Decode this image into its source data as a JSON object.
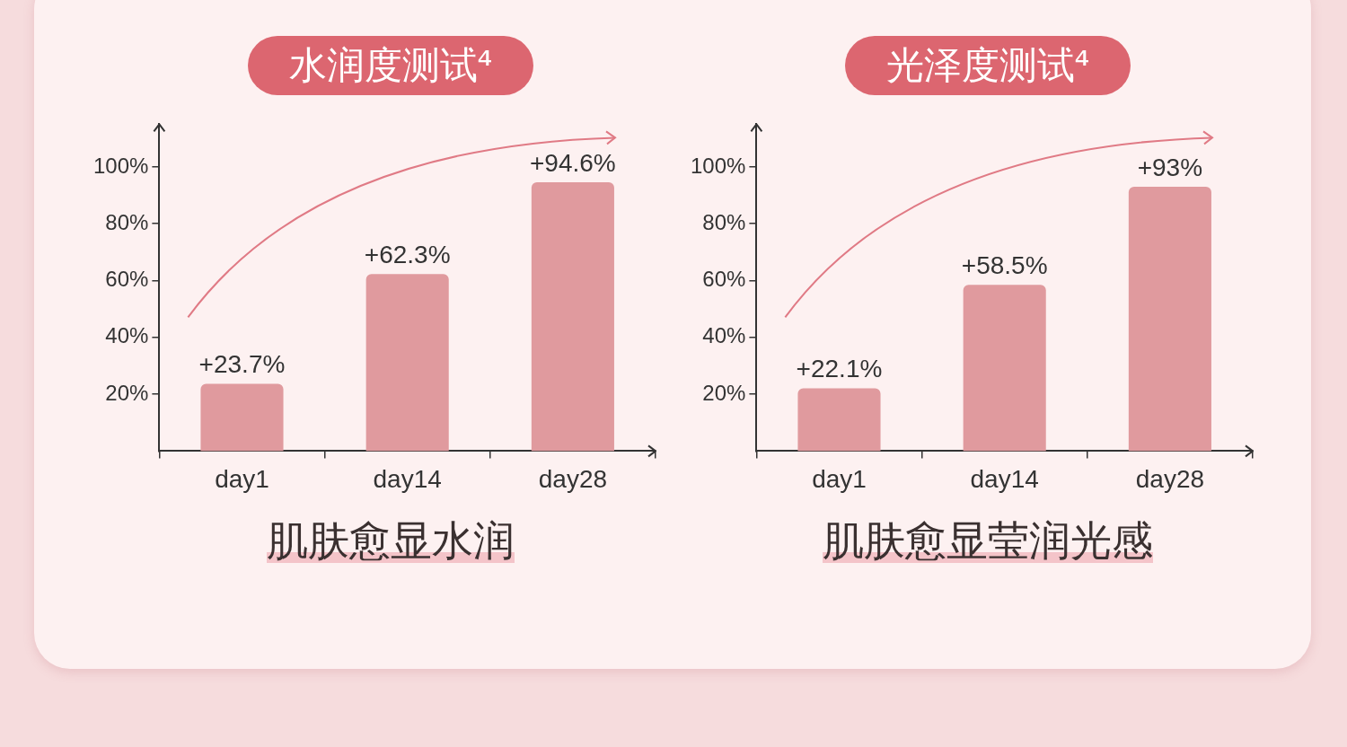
{
  "chart_data": [
    {
      "type": "bar",
      "title": "水润度测试⁴",
      "xlabel": "肌肤愈显水润",
      "categories": [
        "day1",
        "day14",
        "day28"
      ],
      "values": [
        23.7,
        62.3,
        94.6
      ],
      "value_labels": [
        "+23.7%",
        "+62.3%",
        "+94.6%"
      ],
      "color": "#e09a9e",
      "ylim": [
        0,
        115
      ],
      "yticks": [
        {
          "value": 20,
          "label": "20%"
        },
        {
          "value": 40,
          "label": "40%"
        },
        {
          "value": 60,
          "label": "60%"
        },
        {
          "value": 80,
          "label": "80%"
        },
        {
          "value": 100,
          "label": "100%"
        }
      ],
      "grid": false,
      "legend": false
    },
    {
      "type": "bar",
      "title": "光泽度测试⁴",
      "xlabel": "肌肤愈显莹润光感",
      "categories": [
        "day1",
        "day14",
        "day28"
      ],
      "values": [
        22.1,
        58.5,
        93
      ],
      "value_labels": [
        "+22.1%",
        "+58.5%",
        "+93%"
      ],
      "color": "#e09a9e",
      "ylim": [
        0,
        115
      ],
      "yticks": [
        {
          "value": 20,
          "label": "20%"
        },
        {
          "value": 40,
          "label": "40%"
        },
        {
          "value": 60,
          "label": "60%"
        },
        {
          "value": 80,
          "label": "80%"
        },
        {
          "value": 100,
          "label": "100%"
        }
      ],
      "grid": false,
      "legend": false
    }
  ]
}
